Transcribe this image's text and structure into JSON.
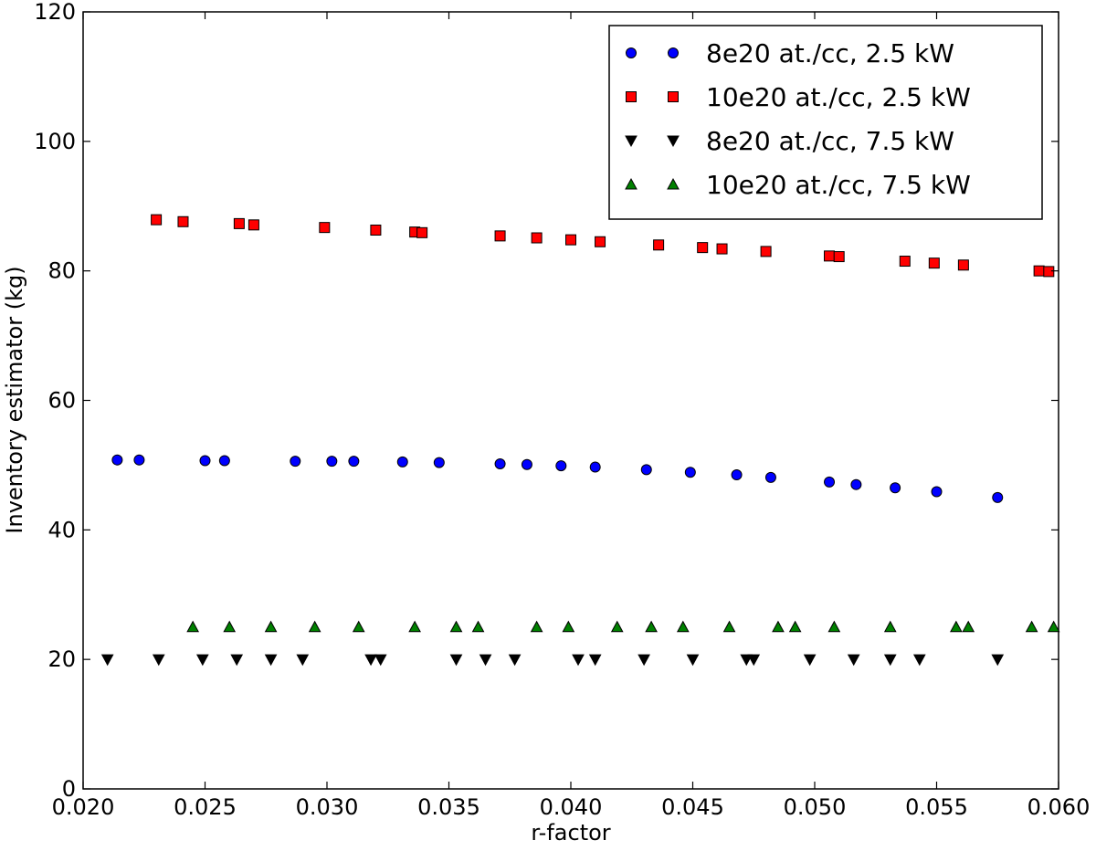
{
  "chart_data": {
    "type": "scatter",
    "title": "",
    "xlabel": "r-factor",
    "ylabel": "Inventory estimator (kg)",
    "xlim": [
      0.02,
      0.06
    ],
    "ylim": [
      0,
      120
    ],
    "x_ticks": [
      0.02,
      0.025,
      0.03,
      0.035,
      0.04,
      0.045,
      0.05,
      0.055,
      0.06
    ],
    "x_tick_labels": [
      "0.020",
      "0.025",
      "0.030",
      "0.035",
      "0.040",
      "0.045",
      "0.050",
      "0.055",
      "0.060"
    ],
    "y_ticks": [
      0,
      20,
      40,
      60,
      80,
      100,
      120
    ],
    "y_tick_labels": [
      "0",
      "20",
      "40",
      "60",
      "80",
      "100",
      "120"
    ],
    "grid": false,
    "legend_position": "top-right",
    "series": [
      {
        "name": "8e20 at./cc, 2.5 kW",
        "marker": "circle",
        "color": "#0000ff",
        "points": [
          [
            0.0214,
            50.8
          ],
          [
            0.0223,
            50.8
          ],
          [
            0.025,
            50.7
          ],
          [
            0.0258,
            50.7
          ],
          [
            0.0287,
            50.6
          ],
          [
            0.0302,
            50.6
          ],
          [
            0.0311,
            50.6
          ],
          [
            0.0331,
            50.5
          ],
          [
            0.0346,
            50.4
          ],
          [
            0.0371,
            50.2
          ],
          [
            0.0382,
            50.1
          ],
          [
            0.0396,
            49.9
          ],
          [
            0.041,
            49.7
          ],
          [
            0.0431,
            49.3
          ],
          [
            0.0449,
            48.9
          ],
          [
            0.0468,
            48.5
          ],
          [
            0.0482,
            48.1
          ],
          [
            0.0506,
            47.4
          ],
          [
            0.0517,
            47.0
          ],
          [
            0.0533,
            46.5
          ],
          [
            0.055,
            45.9
          ],
          [
            0.0575,
            45.0
          ]
        ]
      },
      {
        "name": "10e20 at./cc, 2.5 kW",
        "marker": "square",
        "color": "#ff0000",
        "points": [
          [
            0.023,
            87.9
          ],
          [
            0.0241,
            87.6
          ],
          [
            0.0264,
            87.3
          ],
          [
            0.027,
            87.1
          ],
          [
            0.0299,
            86.7
          ],
          [
            0.032,
            86.3
          ],
          [
            0.0336,
            86.0
          ],
          [
            0.0339,
            85.9
          ],
          [
            0.0371,
            85.4
          ],
          [
            0.0386,
            85.1
          ],
          [
            0.04,
            84.8
          ],
          [
            0.0412,
            84.5
          ],
          [
            0.0436,
            84.0
          ],
          [
            0.0454,
            83.6
          ],
          [
            0.0462,
            83.4
          ],
          [
            0.048,
            83.0
          ],
          [
            0.0506,
            82.3
          ],
          [
            0.051,
            82.2
          ],
          [
            0.0537,
            81.5
          ],
          [
            0.0549,
            81.2
          ],
          [
            0.0561,
            80.9
          ],
          [
            0.0592,
            80.0
          ],
          [
            0.0596,
            79.9
          ]
        ]
      },
      {
        "name": "8e20 at./cc, 7.5 kW",
        "marker": "triangle-down",
        "color": "#000000",
        "points": [
          [
            0.021,
            20
          ],
          [
            0.0231,
            20
          ],
          [
            0.0249,
            20
          ],
          [
            0.0263,
            20
          ],
          [
            0.0277,
            20
          ],
          [
            0.029,
            20
          ],
          [
            0.0318,
            20
          ],
          [
            0.0322,
            20
          ],
          [
            0.0353,
            20
          ],
          [
            0.0365,
            20
          ],
          [
            0.0377,
            20
          ],
          [
            0.0403,
            20
          ],
          [
            0.041,
            20
          ],
          [
            0.043,
            20
          ],
          [
            0.045,
            20
          ],
          [
            0.0472,
            20
          ],
          [
            0.0475,
            20
          ],
          [
            0.0498,
            20
          ],
          [
            0.0516,
            20
          ],
          [
            0.0531,
            20
          ],
          [
            0.0543,
            20
          ],
          [
            0.0575,
            20
          ]
        ]
      },
      {
        "name": "10e20 at./cc, 7.5 kW",
        "marker": "triangle-up",
        "color": "#008000",
        "points": [
          [
            0.0245,
            25
          ],
          [
            0.026,
            25
          ],
          [
            0.0277,
            25
          ],
          [
            0.0295,
            25
          ],
          [
            0.0313,
            25
          ],
          [
            0.0336,
            25
          ],
          [
            0.0353,
            25
          ],
          [
            0.0362,
            25
          ],
          [
            0.0386,
            25
          ],
          [
            0.0399,
            25
          ],
          [
            0.0419,
            25
          ],
          [
            0.0433,
            25
          ],
          [
            0.0446,
            25
          ],
          [
            0.0465,
            25
          ],
          [
            0.0485,
            25
          ],
          [
            0.0492,
            25
          ],
          [
            0.0508,
            25
          ],
          [
            0.0531,
            25
          ],
          [
            0.0558,
            25
          ],
          [
            0.0563,
            25
          ],
          [
            0.0589,
            25
          ],
          [
            0.0598,
            25
          ]
        ]
      }
    ]
  }
}
